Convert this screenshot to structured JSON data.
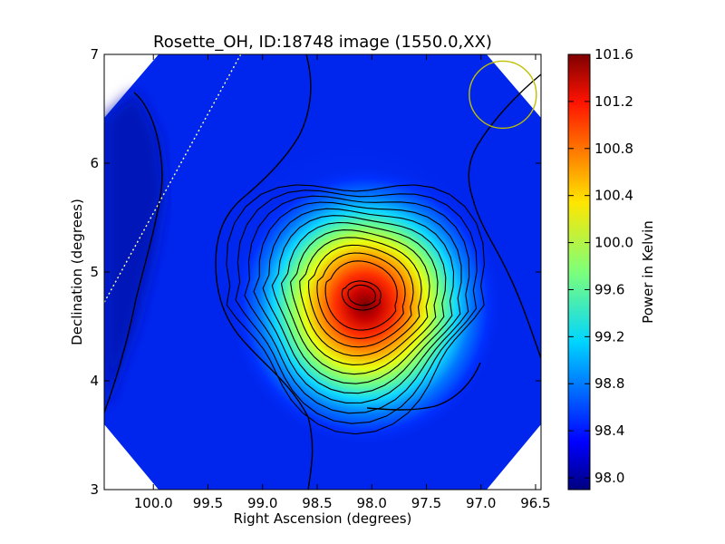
{
  "chart_data": {
    "type": "heatmap",
    "title": "Rosette_OH, ID:18748 image (1550.0,XX)",
    "xlabel": "Right Ascension (degrees)",
    "ylabel": "Declination (degrees)",
    "xlim": [
      100.45,
      96.45
    ],
    "ylim": [
      3,
      7
    ],
    "xticks": [
      "100.0",
      "99.5",
      "99.0",
      "98.5",
      "98.0",
      "97.5",
      "97.0",
      "96.5"
    ],
    "xtick_values": [
      100.0,
      99.5,
      99.0,
      98.5,
      98.0,
      97.5,
      97.0,
      96.5
    ],
    "yticks": [
      "3",
      "4",
      "5",
      "6",
      "7"
    ],
    "ytick_values": [
      3,
      4,
      5,
      6,
      7
    ],
    "colorbar": {
      "label": "Power in Kelvin",
      "min": 97.9,
      "max": 101.6,
      "ticks": [
        "98.0",
        "98.4",
        "98.8",
        "99.2",
        "99.6",
        "100.0",
        "100.4",
        "100.8",
        "101.2",
        "101.6"
      ],
      "tick_values": [
        98.0,
        98.4,
        98.8,
        99.2,
        99.6,
        100.0,
        100.4,
        100.8,
        101.2,
        101.6
      ],
      "colormap": "jet"
    },
    "peak": {
      "ra": 98.1,
      "dec": 4.78,
      "value": 101.6
    },
    "background_level": 98.3,
    "grid": false,
    "beam_circle": {
      "ra": 96.8,
      "dec": 6.63,
      "color": "#bfbf00"
    },
    "dotted_line": {
      "from": {
        "ra": 99.2,
        "dec": 7.0
      },
      "to": {
        "ra": 100.45,
        "dec": 4.72
      },
      "color": "#ffffaa"
    }
  }
}
